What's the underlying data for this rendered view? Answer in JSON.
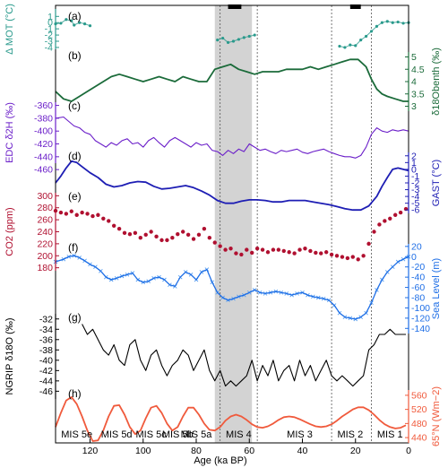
{
  "chart_data": {
    "type": "line",
    "xlabel": "Age (ka BP)",
    "xlim": [
      133,
      0
    ],
    "x_ticks": [
      "120",
      "100",
      "80",
      "60",
      "40",
      "20",
      "0"
    ],
    "shaded_region": {
      "from": 73,
      "to": 59
    },
    "black_bars": [
      {
        "from": 68,
        "to": 63
      },
      {
        "from": 22,
        "to": 18
      }
    ],
    "dotted_lines": [
      71,
      57,
      29,
      14
    ],
    "panels": [
      {
        "label": "(a)",
        "ylabel": "Δ MOT (°C)",
        "axis_side": "left",
        "color": "#2a9a8c",
        "ylim": [
          -4.3,
          2.2
        ],
        "ticks": [
          "1",
          "0",
          "-1",
          "-2",
          "-3",
          "-4"
        ],
        "series": {
          "x": [
            133,
            131,
            129,
            127,
            126,
            124,
            122,
            120,
            72,
            70,
            68,
            66,
            64,
            62,
            60,
            58,
            26,
            24,
            22,
            20,
            18,
            16,
            14,
            12,
            10,
            8,
            6,
            4,
            2,
            0
          ],
          "y": [
            -0.2,
            -0.1,
            0.5,
            0.3,
            -0.4,
            0.0,
            -0.2,
            -0.5,
            -2.8,
            -2.5,
            -3.2,
            -3.0,
            -2.7,
            -2.4,
            -2.2,
            -2.0,
            -3.8,
            -4.0,
            -3.6,
            -3.7,
            -2.8,
            -2.2,
            -1.4,
            -0.6,
            0.0,
            0.2,
            0.0,
            0.1,
            -0.1,
            0.0
          ]
        }
      },
      {
        "label": "(b)",
        "ylabel": "δ18Obenth (‰)",
        "axis_side": "right",
        "color": "#1b6b3a",
        "ylim": [
          2.8,
          5.2
        ],
        "ticks": [
          "3",
          "3.5",
          "4",
          "4.5",
          "5"
        ],
        "series": {
          "x": [
            133,
            130,
            127,
            124,
            121,
            118,
            115,
            112,
            109,
            106,
            103,
            100,
            97,
            94,
            91,
            88,
            85,
            82,
            79,
            76,
            73,
            70,
            67,
            64,
            61,
            58,
            55,
            52,
            49,
            46,
            43,
            40,
            37,
            34,
            31,
            28,
            25,
            22,
            19,
            16,
            14,
            12,
            10,
            8,
            5,
            2,
            0
          ],
          "y": [
            3.6,
            3.3,
            3.2,
            3.4,
            3.6,
            3.8,
            4.0,
            4.2,
            4.3,
            4.2,
            4.1,
            4.0,
            4.1,
            4.2,
            4.1,
            4.0,
            4.2,
            4.1,
            4.0,
            4.0,
            4.5,
            4.6,
            4.7,
            4.5,
            4.4,
            4.3,
            4.4,
            4.4,
            4.4,
            4.5,
            4.5,
            4.5,
            4.6,
            4.5,
            4.6,
            4.7,
            4.8,
            4.9,
            4.9,
            4.6,
            4.1,
            3.7,
            3.5,
            3.4,
            3.3,
            3.2,
            3.2
          ]
        }
      },
      {
        "label": "(c)",
        "ylabel": "EDC δ2H (‰)",
        "axis_side": "left",
        "color": "#6b1fc9",
        "ylim": [
          -450,
          -355
        ],
        "ticks": [
          "-360",
          "-380",
          "-400",
          "-420",
          "-440",
          "-460"
        ],
        "series": {
          "x": [
            133,
            130,
            128,
            126,
            124,
            122,
            120,
            118,
            116,
            114,
            112,
            110,
            108,
            106,
            104,
            102,
            100,
            98,
            96,
            94,
            92,
            90,
            88,
            86,
            84,
            82,
            80,
            78,
            76,
            74,
            72,
            70,
            68,
            66,
            64,
            62,
            60,
            58,
            56,
            54,
            52,
            50,
            48,
            46,
            44,
            42,
            40,
            38,
            36,
            34,
            32,
            30,
            28,
            26,
            24,
            22,
            20,
            18,
            16,
            14,
            12,
            10,
            8,
            6,
            4,
            2,
            0
          ],
          "y": [
            -380,
            -378,
            -385,
            -392,
            -395,
            -402,
            -405,
            -415,
            -420,
            -425,
            -418,
            -422,
            -415,
            -412,
            -420,
            -418,
            -425,
            -415,
            -410,
            -418,
            -425,
            -415,
            -410,
            -415,
            -420,
            -425,
            -418,
            -422,
            -420,
            -430,
            -432,
            -438,
            -430,
            -435,
            -428,
            -432,
            -420,
            -425,
            -430,
            -428,
            -432,
            -435,
            -430,
            -432,
            -430,
            -428,
            -433,
            -435,
            -432,
            -430,
            -428,
            -432,
            -435,
            -438,
            -440,
            -440,
            -442,
            -438,
            -425,
            -405,
            -395,
            -400,
            -402,
            -398,
            -400,
            -398,
            -400
          ]
        }
      },
      {
        "label": "(d)",
        "ylabel": "GAST (°C)",
        "axis_side": "right",
        "color": "#1e1eb4",
        "ylim": [
          -6.5,
          2.5
        ],
        "ticks": [
          "2",
          "1",
          "0",
          "-1",
          "-2",
          "-3",
          "-4",
          "-5",
          "-6"
        ],
        "series": {
          "x": [
            133,
            131,
            129,
            127,
            125,
            123,
            120,
            117,
            114,
            111,
            108,
            105,
            102,
            99,
            96,
            93,
            90,
            87,
            84,
            81,
            78,
            75,
            72,
            69,
            66,
            63,
            60,
            57,
            54,
            51,
            48,
            45,
            42,
            39,
            36,
            33,
            30,
            27,
            24,
            21,
            18,
            15,
            12,
            10,
            8,
            6,
            4,
            2,
            0
          ],
          "y": [
            -2.0,
            -1.0,
            0.2,
            1.2,
            1.0,
            0.4,
            -0.5,
            -1.2,
            -2.2,
            -2.6,
            -2.4,
            -2.0,
            -1.8,
            -1.9,
            -2.5,
            -2.9,
            -2.8,
            -2.6,
            -2.4,
            -2.7,
            -3.2,
            -3.8,
            -4.6,
            -5.0,
            -5.0,
            -4.7,
            -4.5,
            -4.5,
            -4.6,
            -4.8,
            -4.8,
            -4.6,
            -4.6,
            -4.6,
            -4.8,
            -5.0,
            -5.2,
            -5.5,
            -5.8,
            -6.0,
            -6.0,
            -5.4,
            -4.0,
            -2.5,
            -1.2,
            0.0,
            0.2,
            0.0,
            -0.2
          ]
        }
      },
      {
        "label": "(e)",
        "ylabel": "CO2 (ppm)",
        "axis_side": "left",
        "color": "#b01030",
        "ylim": [
          175,
          305
        ],
        "ticks": [
          "300",
          "280",
          "260",
          "240",
          "220",
          "200",
          "180"
        ],
        "series": {
          "x": [
            133,
            131,
            129,
            127,
            125,
            123,
            121,
            119,
            117,
            115,
            113,
            111,
            109,
            107,
            105,
            103,
            101,
            99,
            97,
            95,
            93,
            91,
            89,
            87,
            85,
            83,
            81,
            79,
            77,
            75,
            73,
            71,
            69,
            67,
            65,
            63,
            61,
            59,
            57,
            55,
            53,
            51,
            49,
            47,
            45,
            43,
            41,
            39,
            37,
            35,
            33,
            31,
            29,
            27,
            25,
            23,
            21,
            19,
            17,
            15,
            13,
            11,
            9,
            7,
            5,
            3,
            1
          ],
          "y": [
            275,
            272,
            270,
            274,
            268,
            272,
            270,
            266,
            268,
            262,
            258,
            250,
            245,
            238,
            236,
            238,
            230,
            235,
            240,
            232,
            226,
            226,
            230,
            236,
            240,
            235,
            228,
            235,
            245,
            230,
            222,
            216,
            210,
            212,
            204,
            202,
            210,
            205,
            212,
            210,
            206,
            210,
            210,
            208,
            206,
            204,
            210,
            212,
            208,
            205,
            204,
            206,
            202,
            200,
            198,
            196,
            198,
            194,
            200,
            220,
            240,
            252,
            258,
            262,
            268,
            272,
            278
          ]
        }
      },
      {
        "label": "(f)",
        "ylabel": "Sea Level (m)",
        "axis_side": "right",
        "color": "#1e6ee6",
        "ylim": [
          -150,
          25
        ],
        "ticks": [
          "20",
          "0",
          "-20",
          "-40",
          "-60",
          "-80",
          "-100",
          "-120",
          "-140"
        ],
        "series": {
          "x": [
            133,
            130,
            128,
            126,
            124,
            122,
            120,
            118,
            116,
            114,
            112,
            110,
            108,
            106,
            104,
            102,
            100,
            98,
            96,
            94,
            92,
            90,
            88,
            86,
            84,
            82,
            80,
            78,
            76,
            74,
            72,
            70,
            68,
            66,
            64,
            62,
            60,
            58,
            56,
            54,
            52,
            50,
            48,
            46,
            44,
            42,
            40,
            38,
            36,
            34,
            32,
            30,
            28,
            26,
            24,
            22,
            20,
            18,
            16,
            14,
            12,
            10,
            8,
            6,
            4,
            2,
            0
          ],
          "y": [
            -10,
            -5,
            0,
            2,
            -2,
            -8,
            -15,
            -20,
            -28,
            -40,
            -45,
            -42,
            -38,
            -35,
            -32,
            -45,
            -50,
            -48,
            -42,
            -40,
            -45,
            -55,
            -58,
            -40,
            -30,
            -35,
            -45,
            -30,
            -25,
            -50,
            -70,
            -80,
            -85,
            -82,
            -78,
            -75,
            -70,
            -65,
            -70,
            -72,
            -70,
            -68,
            -70,
            -72,
            -75,
            -72,
            -70,
            -75,
            -78,
            -80,
            -82,
            -85,
            -95,
            -110,
            -118,
            -120,
            -122,
            -118,
            -110,
            -90,
            -65,
            -45,
            -30,
            -20,
            -10,
            -5,
            0
          ]
        }
      },
      {
        "label": "(g)",
        "ylabel": "NGRIP δ18O (‰)",
        "axis_side": "left",
        "color": "#000000",
        "ylim": [
          -47.5,
          -31
        ],
        "ticks": [
          "-32",
          "-34",
          "-36",
          "-38",
          "-40",
          "-42",
          "-44",
          "-46"
        ],
        "series": {
          "x": [
            123,
            121,
            119,
            117,
            115,
            113,
            111,
            109,
            107,
            105,
            103,
            101,
            99,
            97,
            95,
            93,
            91,
            89,
            87,
            85,
            83,
            81,
            79,
            77,
            75,
            73,
            71,
            69,
            67,
            65,
            63,
            61,
            59,
            57,
            55,
            53,
            51,
            49,
            47,
            45,
            43,
            41,
            39,
            37,
            35,
            33,
            31,
            29,
            27,
            25,
            23,
            21,
            19,
            17,
            15,
            13,
            11,
            9,
            7,
            5,
            3,
            1
          ],
          "y": [
            -33,
            -35,
            -34,
            -36,
            -38,
            -39,
            -37,
            -40,
            -41,
            -37,
            -36,
            -40,
            -42,
            -39,
            -38,
            -41,
            -43,
            -41,
            -40,
            -38,
            -39,
            -42,
            -40,
            -38,
            -42,
            -44,
            -42,
            -45,
            -44,
            -45,
            -44,
            -43,
            -40,
            -44,
            -41,
            -43,
            -40,
            -44,
            -42,
            -41,
            -44,
            -40,
            -43,
            -41,
            -44,
            -42,
            -40,
            -43,
            -44,
            -43,
            -44,
            -45,
            -44,
            -43,
            -38,
            -37,
            -35,
            -35,
            -34,
            -35,
            -35,
            -35
          ]
        }
      },
      {
        "label": "(h)",
        "ylabel": "65°N (Wm−2)",
        "axis_side": "right",
        "color": "#f05a3c",
        "ylim": [
          425,
          575
        ],
        "ticks": [
          "560",
          "520",
          "480",
          "440"
        ],
        "series": {
          "x": [
            133,
            131,
            129,
            127,
            125,
            123,
            121,
            119,
            117,
            115,
            113,
            111,
            109,
            107,
            105,
            103,
            101,
            99,
            97,
            95,
            93,
            91,
            89,
            87,
            85,
            83,
            81,
            79,
            77,
            75,
            73,
            71,
            69,
            67,
            65,
            63,
            61,
            59,
            57,
            55,
            53,
            51,
            49,
            47,
            45,
            43,
            41,
            39,
            37,
            35,
            33,
            31,
            29,
            27,
            25,
            23,
            21,
            19,
            17,
            15,
            13,
            11,
            9,
            7,
            5,
            3,
            1
          ],
          "y": [
            470,
            510,
            545,
            555,
            535,
            500,
            460,
            430,
            432,
            460,
            500,
            530,
            532,
            505,
            470,
            450,
            460,
            495,
            525,
            530,
            510,
            480,
            460,
            470,
            500,
            525,
            525,
            505,
            480,
            462,
            460,
            470,
            488,
            500,
            505,
            500,
            490,
            478,
            470,
            468,
            472,
            480,
            490,
            498,
            500,
            498,
            492,
            485,
            478,
            472,
            470,
            472,
            478,
            488,
            500,
            510,
            520,
            526,
            526,
            518,
            505,
            490,
            478,
            470,
            466,
            468,
            475
          ]
        }
      }
    ],
    "mis_labels": [
      {
        "text": "MIS 5e",
        "x": 125
      },
      {
        "text": "MIS 5d",
        "x": 110
      },
      {
        "text": "MIS 5c",
        "x": 97
      },
      {
        "text": "MIS 5b",
        "x": 87
      },
      {
        "text": "MIS 5a",
        "x": 80
      },
      {
        "text": "MIS 4",
        "x": 64
      },
      {
        "text": "MIS 3",
        "x": 41
      },
      {
        "text": "MIS 2",
        "x": 22
      },
      {
        "text": "MIS 1",
        "x": 7
      }
    ]
  }
}
